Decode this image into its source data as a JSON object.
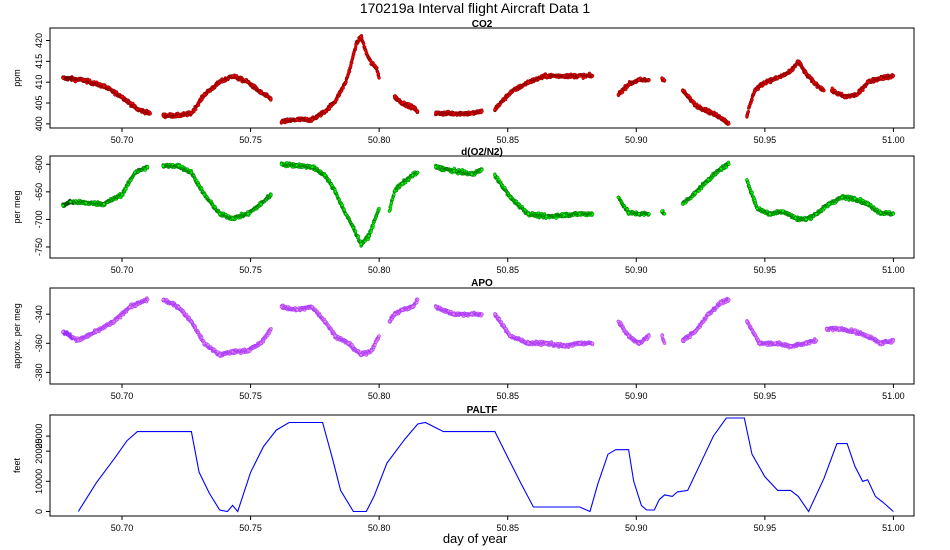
{
  "figure": {
    "title": "170219a   Interval flight Aircraft Data 1",
    "xlabel": "day of year"
  },
  "chart_data": [
    {
      "type": "scatter",
      "title": "CO2",
      "ylabel": "ppm",
      "xlim": [
        50.672,
        51.008
      ],
      "ylim": [
        399,
        423
      ],
      "yticks": [
        400,
        405,
        410,
        415,
        420
      ],
      "xticks": [
        "50.70",
        "50.75",
        "50.80",
        "50.85",
        "50.90",
        "50.95",
        "51.00"
      ],
      "colors": {
        "fill": "#ff0000",
        "edge": "#7a0000",
        "early": "#8b0000"
      },
      "series": [
        {
          "x": [
            50.677,
            50.685,
            50.693,
            50.7,
            50.706,
            50.711
          ],
          "y": [
            411,
            410.5,
            409,
            406.5,
            403.5,
            402.5
          ]
        },
        {
          "x": [
            50.716,
            50.722,
            50.727,
            50.732,
            50.738,
            50.743,
            50.749,
            50.754,
            50.758
          ],
          "y": [
            402,
            402,
            402.5,
            407,
            410,
            411.5,
            410,
            407.5,
            406
          ]
        },
        {
          "x": [
            50.762,
            50.768,
            50.774,
            50.779,
            50.783,
            50.787,
            50.789,
            50.791,
            50.793,
            50.795,
            50.797,
            50.799,
            50.8
          ],
          "y": [
            400.5,
            401,
            401,
            403,
            405.5,
            410,
            414,
            419,
            421,
            417,
            414.5,
            413.5,
            411
          ]
        },
        {
          "x": [
            50.806,
            50.809,
            50.813,
            50.815
          ],
          "y": [
            406.5,
            405,
            404,
            403
          ]
        },
        {
          "x": [
            50.822,
            50.829,
            50.836,
            50.84
          ],
          "y": [
            402.5,
            402.5,
            402.5,
            403
          ]
        },
        {
          "x": [
            50.845,
            50.851,
            50.858,
            50.865,
            50.872,
            50.878,
            50.883
          ],
          "y": [
            403.5,
            407.5,
            410,
            411.5,
            411.5,
            411.5,
            411.5
          ]
        },
        {
          "x": [
            50.893,
            50.897,
            50.901,
            50.905
          ],
          "y": [
            407,
            409.5,
            410.5,
            410.5
          ]
        },
        {
          "x": [
            50.91,
            50.911
          ],
          "y": [
            411,
            410.5
          ]
        },
        {
          "x": [
            50.918,
            50.923,
            50.928,
            50.933,
            50.936
          ],
          "y": [
            408,
            404.5,
            403,
            401.5,
            400
          ]
        },
        {
          "x": [
            50.943,
            50.946,
            50.95,
            50.955,
            50.96,
            50.963,
            50.966,
            50.969,
            50.973
          ],
          "y": [
            402,
            408,
            410,
            411,
            412.5,
            415,
            412,
            410,
            408
          ]
        },
        {
          "x": [
            50.976,
            50.981,
            50.986,
            50.99,
            50.995,
            51.0
          ],
          "y": [
            408,
            406.5,
            407,
            410,
            411,
            411.5
          ]
        }
      ]
    },
    {
      "type": "scatter",
      "title": "d(O2/N2)",
      "ylabel": "per meg",
      "xlim": [
        50.672,
        51.008
      ],
      "ylim": [
        -770,
        -585
      ],
      "yticks": [
        -600,
        -650,
        -700,
        -750
      ],
      "xticks": [
        "50.70",
        "50.75",
        "50.80",
        "50.85",
        "50.90",
        "50.95",
        "51.00"
      ],
      "colors": {
        "fill": "#00ff00",
        "edge": "#006400",
        "early": "#0a4a0a"
      },
      "series": [
        {
          "x": [
            50.677,
            50.68,
            50.686,
            50.693,
            50.7,
            50.705,
            50.71
          ],
          "y": [
            -675,
            -668,
            -670,
            -672,
            -655,
            -615,
            -605
          ]
        },
        {
          "x": [
            50.716,
            50.722,
            50.727,
            50.732,
            50.738,
            50.743,
            50.749,
            50.754,
            50.758
          ],
          "y": [
            -603,
            -603,
            -615,
            -655,
            -690,
            -698,
            -690,
            -672,
            -655
          ]
        },
        {
          "x": [
            50.762,
            50.768,
            50.774,
            50.779,
            50.783,
            50.787,
            50.79,
            50.793,
            50.796,
            50.8
          ],
          "y": [
            -600,
            -602,
            -605,
            -620,
            -650,
            -690,
            -715,
            -745,
            -730,
            -680
          ]
        },
        {
          "x": [
            50.804,
            50.806,
            50.809,
            50.813,
            50.815
          ],
          "y": [
            -685,
            -648,
            -635,
            -620,
            -615
          ]
        },
        {
          "x": [
            50.822,
            50.829,
            50.836,
            50.84
          ],
          "y": [
            -605,
            -612,
            -618,
            -610
          ]
        },
        {
          "x": [
            50.845,
            50.851,
            50.858,
            50.865,
            50.872,
            50.878,
            50.883
          ],
          "y": [
            -620,
            -660,
            -690,
            -695,
            -692,
            -690,
            -690
          ]
        },
        {
          "x": [
            50.893,
            50.897,
            50.901,
            50.905
          ],
          "y": [
            -660,
            -688,
            -690,
            -690
          ]
        },
        {
          "x": [
            50.91,
            50.911
          ],
          "y": [
            -685,
            -690
          ]
        },
        {
          "x": [
            50.918,
            50.923,
            50.928,
            50.933,
            50.936
          ],
          "y": [
            -672,
            -652,
            -628,
            -608,
            -600
          ]
        },
        {
          "x": [
            50.943,
            50.947,
            50.952,
            50.957,
            50.962,
            50.966,
            50.97,
            50.975,
            50.98,
            50.985,
            50.99,
            50.995,
            51.0
          ],
          "y": [
            -628,
            -680,
            -690,
            -685,
            -698,
            -700,
            -690,
            -672,
            -660,
            -662,
            -672,
            -688,
            -690
          ]
        }
      ]
    },
    {
      "type": "scatter",
      "title": "APO",
      "ylabel": "approx. per meg",
      "xlim": [
        50.672,
        51.008
      ],
      "ylim": [
        -388,
        -322
      ],
      "yticks": [
        -340,
        -360,
        -380
      ],
      "xticks": [
        "50.70",
        "50.75",
        "50.80",
        "50.85",
        "50.90",
        "50.95",
        "51.00"
      ],
      "colors": {
        "fill": "#ee82ee",
        "edge": "#9b30ff",
        "early": "#9b30ff"
      },
      "series": [
        {
          "x": [
            50.677,
            50.683,
            50.69,
            50.697,
            50.703,
            50.71
          ],
          "y": [
            -352,
            -358,
            -352,
            -345,
            -335,
            -330
          ]
        },
        {
          "x": [
            50.716,
            50.722,
            50.727,
            50.732,
            50.738,
            50.743,
            50.749,
            50.754,
            50.758
          ],
          "y": [
            -330,
            -335,
            -345,
            -360,
            -368,
            -366,
            -365,
            -360,
            -350
          ]
        },
        {
          "x": [
            50.762,
            50.768,
            50.774,
            50.779,
            50.783,
            50.788,
            50.793,
            50.797,
            50.8
          ],
          "y": [
            -335,
            -337,
            -335,
            -345,
            -355,
            -360,
            -368,
            -365,
            -355
          ]
        },
        {
          "x": [
            50.804,
            50.806,
            50.809,
            50.813,
            50.815
          ],
          "y": [
            -345,
            -340,
            -337,
            -335,
            -330
          ]
        },
        {
          "x": [
            50.822,
            50.829,
            50.836,
            50.84
          ],
          "y": [
            -335,
            -340,
            -340,
            -340
          ]
        },
        {
          "x": [
            50.845,
            50.851,
            50.858,
            50.865,
            50.872,
            50.878,
            50.883
          ],
          "y": [
            -340,
            -355,
            -360,
            -360,
            -362,
            -360,
            -360
          ]
        },
        {
          "x": [
            50.893,
            50.897,
            50.901,
            50.905
          ],
          "y": [
            -345,
            -355,
            -360,
            -355
          ]
        },
        {
          "x": [
            50.91,
            50.911
          ],
          "y": [
            -355,
            -360
          ]
        },
        {
          "x": [
            50.918,
            50.923,
            50.928,
            50.933,
            50.936
          ],
          "y": [
            -358,
            -352,
            -340,
            -332,
            -330
          ]
        },
        {
          "x": [
            50.943,
            50.948,
            50.954,
            50.96,
            50.966,
            50.97
          ],
          "y": [
            -345,
            -360,
            -360,
            -362,
            -360,
            -358
          ]
        },
        {
          "x": [
            50.974,
            50.979,
            50.985,
            50.99,
            50.995,
            51.0
          ],
          "y": [
            -350,
            -350,
            -352,
            -355,
            -360,
            -358
          ]
        }
      ]
    },
    {
      "type": "line",
      "title": "PALTF",
      "ylabel": "feet",
      "xlabel": "day of year",
      "xlim": [
        50.672,
        51.008
      ],
      "ylim": [
        -1500,
        32000
      ],
      "yticks": [
        0,
        10000,
        20000,
        25000
      ],
      "xticks": [
        "50.70",
        "50.75",
        "50.80",
        "50.85",
        "50.90",
        "50.95",
        "51.00"
      ],
      "colors": {
        "line": "#0000ff"
      },
      "series": [
        {
          "x": [
            50.683,
            50.69,
            50.697,
            50.702,
            50.706,
            50.727,
            50.73,
            50.734,
            50.738,
            50.741,
            50.743,
            50.745,
            50.75,
            50.755,
            50.76,
            50.765,
            50.778,
            50.782,
            50.785,
            50.79,
            50.795,
            50.798,
            50.803,
            50.81,
            50.815,
            50.818,
            50.825,
            50.845,
            50.85,
            50.855,
            50.86,
            50.878,
            50.882,
            50.885,
            50.889,
            50.892,
            50.897,
            50.899,
            50.902,
            50.904,
            50.907,
            50.909,
            50.911,
            50.914,
            50.916,
            50.92,
            50.925,
            50.93,
            50.935,
            50.942,
            50.945,
            50.95,
            50.955,
            50.96,
            50.963,
            50.967,
            50.973,
            50.978,
            50.982,
            50.985,
            50.988,
            50.99,
            50.993,
            50.996,
            51.0
          ],
          "y": [
            0,
            9500,
            17500,
            23500,
            26500,
            26500,
            13000,
            6000,
            500,
            0,
            2000,
            0,
            13000,
            21500,
            27000,
            29500,
            29500,
            17000,
            7000,
            0,
            0,
            5000,
            16000,
            24000,
            29000,
            29500,
            26500,
            26500,
            18000,
            9500,
            1500,
            1500,
            0,
            9000,
            19000,
            20500,
            20500,
            10000,
            2000,
            500,
            500,
            4000,
            5500,
            5000,
            6500,
            7000,
            16000,
            25000,
            31000,
            31000,
            19000,
            11500,
            7000,
            7000,
            5000,
            0,
            11000,
            22500,
            22500,
            15000,
            10000,
            10500,
            5000,
            3000,
            0
          ]
        }
      ]
    }
  ]
}
